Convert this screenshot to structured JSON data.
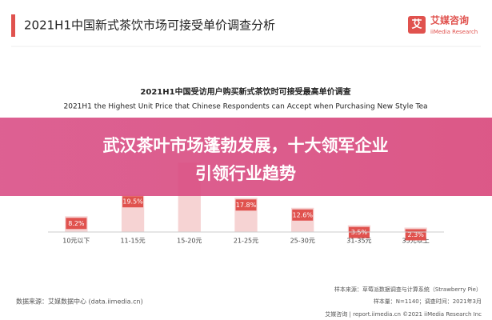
{
  "header": {
    "title": "2021H1中国新式茶饮市场可接受单价调查分析",
    "logo": "艾媒咨询",
    "logo_sub": "iiMedia Research",
    "logo_icon": "艾"
  },
  "banner": {
    "line1": "武汉茶叶市场蓬勃发展，十大领军企业",
    "line2": "引领行业趋势"
  },
  "chart_data": {
    "type": "bar",
    "title": "2021H1中国受访用户购买新式茶饮时可接受最高单价调查",
    "subtitle": "2021H1 the Highest Unit Price that Chinese Respondents can Accept when Purchasing New Style Tea",
    "categories": [
      "10元以下",
      "11-15元",
      "15-20元",
      "21-25元",
      "25-30元",
      "31-35元",
      "35元以上"
    ],
    "values": [
      8.2,
      19.5,
      36.1,
      17.8,
      12.6,
      3.5,
      2.3
    ],
    "value_labels": [
      "8.2%",
      "19.5%",
      null,
      "17.8%",
      "12.6%",
      "3.5%",
      "2.3%"
    ],
    "color": "#f6d3d3",
    "label_color": "#e0524e",
    "ylim": [
      0,
      40
    ]
  },
  "footer": {
    "source": "数据来源：艾媒数据中心 (data.iimedia.cn)",
    "sample_source": "样本来源：草莓派数据调查与计算系统（Strawberry Pie）",
    "sample_size": "样本量：N=1140；调查时间：2021年3月",
    "brand": "艾媒咨询 | report.iimedia.cn ©2021 iiMedia Research Inc"
  }
}
